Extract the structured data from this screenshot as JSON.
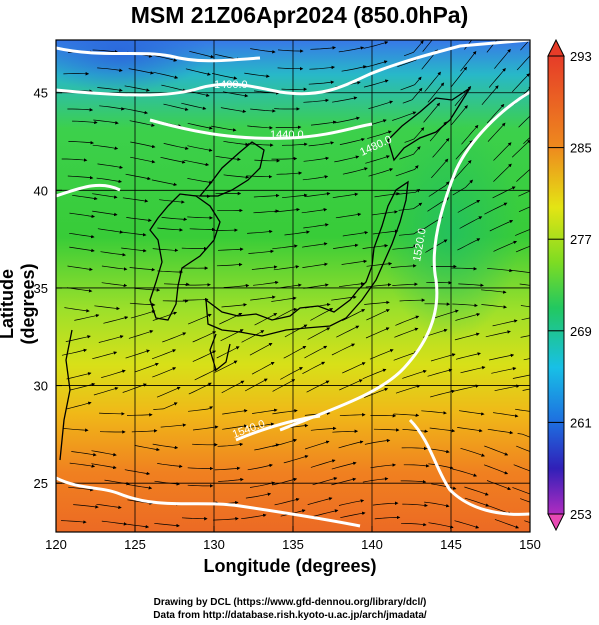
{
  "title": "MSM 21Z06Apr2024 (850.0hPa)",
  "x_axis": {
    "label": "Longitude (degrees)",
    "min": 120,
    "max": 150,
    "ticks": [
      120,
      125,
      130,
      135,
      140,
      145,
      150
    ]
  },
  "y_axis": {
    "label": "Latitude  (degrees)",
    "min": 22.5,
    "max": 47.7,
    "ticks": [
      25,
      30,
      35,
      40,
      45
    ]
  },
  "colorbar": {
    "min": 253,
    "max": 293,
    "labels": [
      293,
      285,
      277,
      269,
      261,
      253
    ],
    "colors": [
      "#e83aa8",
      "#7a1fc4",
      "#2030c8",
      "#1e78e6",
      "#18c8e6",
      "#20c86e",
      "#30d23a",
      "#8ee01e",
      "#dce812",
      "#f0b414",
      "#ee7a1e",
      "#e63c28"
    ]
  },
  "contours": [
    {
      "label": "1400.0"
    },
    {
      "label": "1440.0"
    },
    {
      "label": "1480.0"
    },
    {
      "label": "1520.0"
    },
    {
      "label": "1540.0"
    }
  ],
  "credits": {
    "line1": "Drawing by DCL (https://www.gfd-dennou.org/library/dcl/)",
    "line2": "Data from http://database.rish.kyoto-u.ac.jp/arch/jmadata/"
  }
}
